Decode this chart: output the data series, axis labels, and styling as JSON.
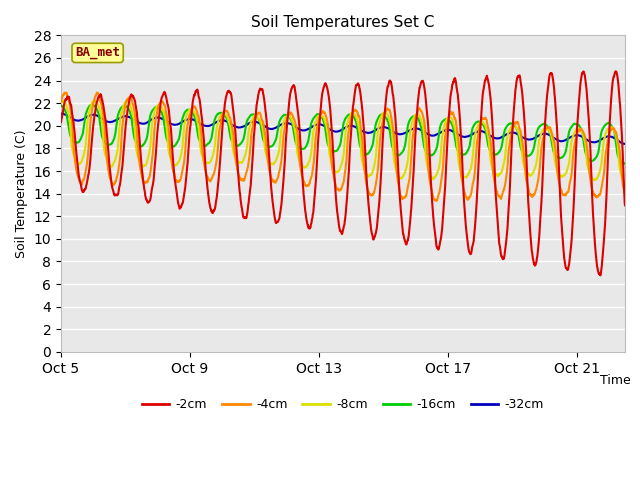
{
  "title": "Soil Temperatures Set C",
  "xlabel": "Time",
  "ylabel": "Soil Temperature (C)",
  "ylim": [
    0,
    28
  ],
  "yticks": [
    0,
    2,
    4,
    6,
    8,
    10,
    12,
    14,
    16,
    18,
    20,
    22,
    24,
    26,
    28
  ],
  "xtick_labels": [
    "Oct 5",
    "Oct 9",
    "Oct 13",
    "Oct 17",
    "Oct 21"
  ],
  "xtick_pos": [
    0,
    4,
    8,
    12,
    16
  ],
  "xlim": [
    0,
    17.5
  ],
  "line_colors": [
    "#dd0000",
    "#ff8800",
    "#dddd00",
    "#00cc00",
    "#0000bb"
  ],
  "line_labels": [
    "-2cm",
    "-4cm",
    "-8cm",
    "-16cm",
    "-32cm"
  ],
  "bg_color": "#e8e8e8",
  "label_box_text": "BA_met",
  "label_box_facecolor": "#ffff99",
  "label_box_edgecolor": "#999900",
  "label_text_color": "#880000",
  "n_points": 2040
}
